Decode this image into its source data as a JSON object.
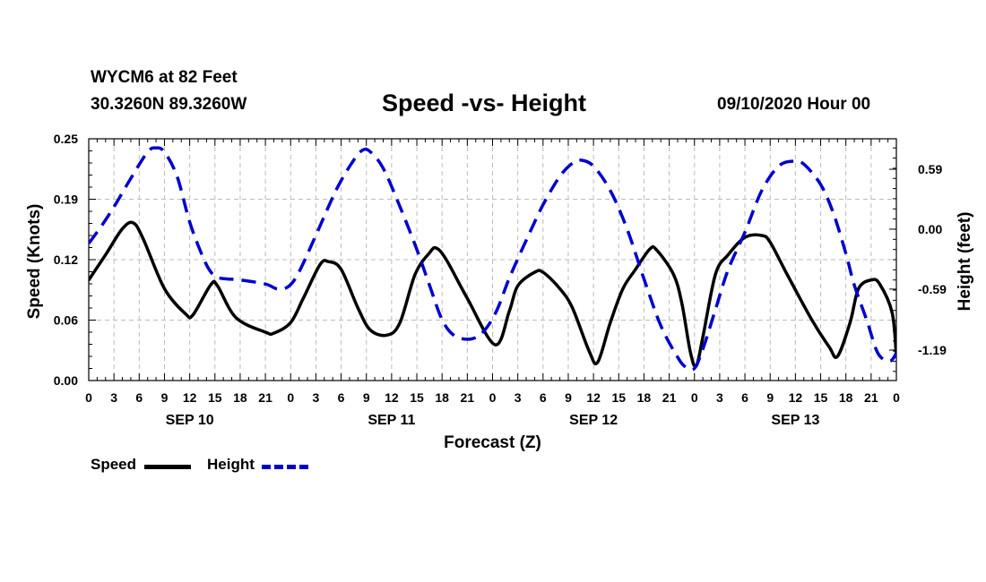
{
  "header": {
    "station": "WYCM6 at 82 Feet",
    "coords": "30.3260N 89.3260W",
    "title": "Speed -vs- Height",
    "datetime": "09/10/2020 Hour 00"
  },
  "legend": {
    "speed_label": "Speed",
    "height_label": "Height"
  },
  "chart_data": {
    "type": "line",
    "title": "Speed -vs- Height",
    "xlabel": "Forecast (Z)",
    "ylabel_left": "Speed (Knots)",
    "ylabel_right": "Height (feet)",
    "x_range": [
      0,
      96
    ],
    "x_ticks": [
      0,
      3,
      6,
      9,
      12,
      15,
      18,
      21,
      24,
      27,
      30,
      33,
      36,
      39,
      42,
      45,
      48,
      51,
      54,
      57,
      60,
      63,
      66,
      69,
      72,
      75,
      78,
      81,
      84,
      87,
      90,
      93,
      96
    ],
    "x_tick_labels": [
      "0",
      "3",
      "6",
      "9",
      "12",
      "15",
      "18",
      "21",
      "0",
      "3",
      "6",
      "9",
      "12",
      "15",
      "18",
      "21",
      "0",
      "3",
      "6",
      "9",
      "12",
      "15",
      "18",
      "21",
      "0",
      "3",
      "6",
      "9",
      "12",
      "15",
      "18",
      "21",
      "0"
    ],
    "day_labels": [
      {
        "label": "SEP 10",
        "x": 12
      },
      {
        "label": "SEP 11",
        "x": 36
      },
      {
        "label": "SEP 12",
        "x": 60
      },
      {
        "label": "SEP 13",
        "x": 84
      }
    ],
    "ylim_left": [
      0,
      0.25
    ],
    "y_ticks_left": [
      "0.00",
      "0.06",
      "0.12",
      "0.19",
      "0.25"
    ],
    "y_tick_values_left": [
      0,
      0.0625,
      0.125,
      0.1875,
      0.25
    ],
    "ylim_right": [
      -1.49,
      0.89
    ],
    "y_ticks_right": [
      "0.59",
      "0.00",
      "-0.59",
      "-1.19"
    ],
    "y_tick_values_right": [
      0.59,
      0.0,
      -0.59,
      -1.19
    ],
    "grid": true,
    "series": [
      {
        "name": "Speed",
        "axis": "left",
        "color": "#000000",
        "style": "solid",
        "points": [
          [
            0,
            0.104
          ],
          [
            2,
            0.13
          ],
          [
            4,
            0.157
          ],
          [
            5.3,
            0.163
          ],
          [
            6.5,
            0.146
          ],
          [
            9,
            0.095
          ],
          [
            11.5,
            0.069
          ],
          [
            12.4,
            0.068
          ],
          [
            14.5,
            0.099
          ],
          [
            15.3,
            0.098
          ],
          [
            17.5,
            0.065
          ],
          [
            21,
            0.05
          ],
          [
            22,
            0.049
          ],
          [
            24,
            0.06
          ],
          [
            25.5,
            0.085
          ],
          [
            27.5,
            0.12
          ],
          [
            28.5,
            0.123
          ],
          [
            30,
            0.115
          ],
          [
            32,
            0.075
          ],
          [
            33.5,
            0.052
          ],
          [
            35.5,
            0.047
          ],
          [
            37,
            0.06
          ],
          [
            38.8,
            0.11
          ],
          [
            40.5,
            0.132
          ],
          [
            41.3,
            0.137
          ],
          [
            42.5,
            0.125
          ],
          [
            45,
            0.085
          ],
          [
            48.3,
            0.037
          ],
          [
            50,
            0.072
          ],
          [
            51,
            0.098
          ],
          [
            53,
            0.112
          ],
          [
            54,
            0.112
          ],
          [
            56,
            0.095
          ],
          [
            57.5,
            0.075
          ],
          [
            59.5,
            0.03
          ],
          [
            60.5,
            0.019
          ],
          [
            62,
            0.06
          ],
          [
            63.5,
            0.095
          ],
          [
            65,
            0.115
          ],
          [
            66.7,
            0.136
          ],
          [
            67.5,
            0.135
          ],
          [
            69.5,
            0.11
          ],
          [
            70.5,
            0.08
          ],
          [
            71.5,
            0.03
          ],
          [
            72.2,
            0.015
          ],
          [
            73,
            0.045
          ],
          [
            74.5,
            0.11
          ],
          [
            76,
            0.13
          ],
          [
            78,
            0.148
          ],
          [
            80,
            0.15
          ],
          [
            81,
            0.143
          ],
          [
            83,
            0.11
          ],
          [
            86,
            0.062
          ],
          [
            88,
            0.035
          ],
          [
            89,
            0.025
          ],
          [
            90.5,
            0.06
          ],
          [
            91.5,
            0.095
          ],
          [
            93,
            0.104
          ],
          [
            94,
            0.1
          ],
          [
            95.5,
            0.07
          ],
          [
            96,
            0.025
          ]
        ]
      },
      {
        "name": "Height",
        "axis": "right",
        "color": "#0000cc",
        "style": "dashed",
        "points": [
          [
            0,
            -0.14
          ],
          [
            1.5,
            0.03
          ],
          [
            3,
            0.22
          ],
          [
            5,
            0.5
          ],
          [
            7,
            0.76
          ],
          [
            8,
            0.8
          ],
          [
            9,
            0.76
          ],
          [
            10.5,
            0.52
          ],
          [
            12,
            0.07
          ],
          [
            13.5,
            -0.26
          ],
          [
            14.5,
            -0.42
          ],
          [
            15.5,
            -0.48
          ],
          [
            18,
            -0.5
          ],
          [
            21,
            -0.54
          ],
          [
            22.5,
            -0.59
          ],
          [
            23.8,
            -0.56
          ],
          [
            25,
            -0.42
          ],
          [
            27,
            -0.06
          ],
          [
            29.5,
            0.4
          ],
          [
            31.5,
            0.68
          ],
          [
            32.6,
            0.78
          ],
          [
            33.5,
            0.76
          ],
          [
            35,
            0.6
          ],
          [
            37,
            0.22
          ],
          [
            39,
            -0.2
          ],
          [
            40.5,
            -0.55
          ],
          [
            42,
            -0.89
          ],
          [
            43.5,
            -1.05
          ],
          [
            45.5,
            -1.08
          ],
          [
            47,
            -1.0
          ],
          [
            48.5,
            -0.8
          ],
          [
            50,
            -0.48
          ],
          [
            52,
            -0.11
          ],
          [
            54,
            0.24
          ],
          [
            56,
            0.52
          ],
          [
            57.5,
            0.65
          ],
          [
            58.5,
            0.68
          ],
          [
            60,
            0.62
          ],
          [
            62,
            0.38
          ],
          [
            64,
            0.0
          ],
          [
            66,
            -0.49
          ],
          [
            68,
            -0.95
          ],
          [
            70,
            -1.26
          ],
          [
            71,
            -1.36
          ],
          [
            72,
            -1.37
          ],
          [
            73,
            -1.18
          ],
          [
            74.5,
            -0.79
          ],
          [
            76,
            -0.4
          ],
          [
            78,
            -0.03
          ],
          [
            80,
            0.38
          ],
          [
            82,
            0.62
          ],
          [
            83.8,
            0.67
          ],
          [
            85,
            0.64
          ],
          [
            87,
            0.44
          ],
          [
            88.5,
            0.16
          ],
          [
            90,
            -0.24
          ],
          [
            91,
            -0.55
          ],
          [
            92.5,
            -0.9
          ],
          [
            93.8,
            -1.22
          ],
          [
            95.2,
            -1.3
          ],
          [
            96,
            -1.22
          ]
        ]
      }
    ]
  }
}
